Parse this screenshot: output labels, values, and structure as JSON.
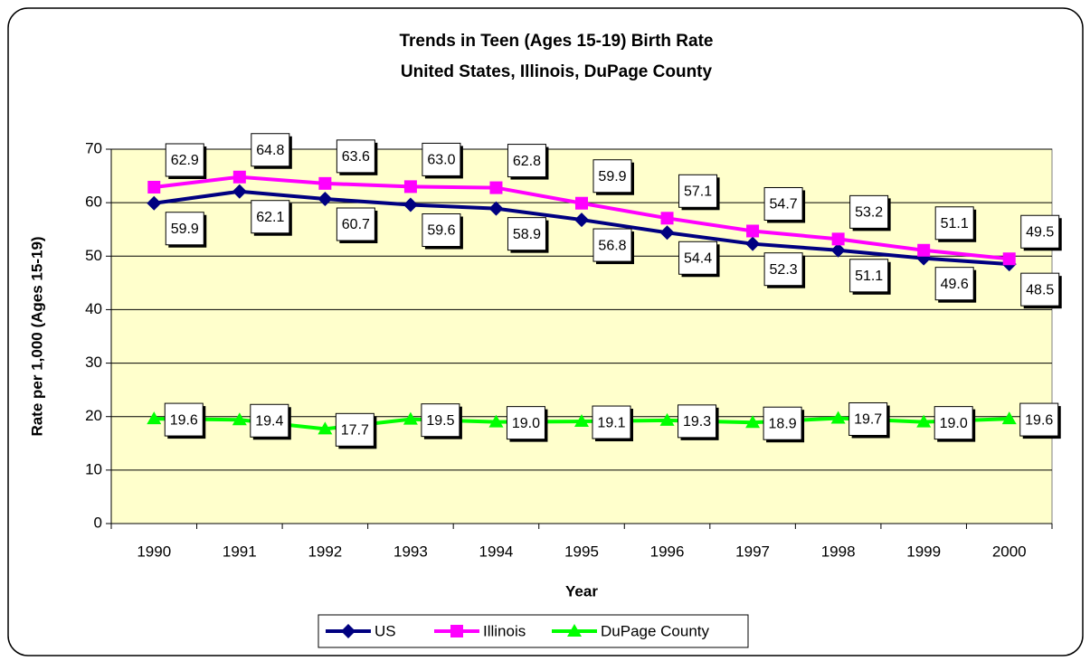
{
  "chart_data": {
    "type": "line",
    "title": "Trends in Teen (Ages 15-19) Birth Rate",
    "subtitle": "United States, Illinois, DuPage County",
    "x_label": "Year",
    "y_label": "Rate per 1,000 (Ages 15-19)",
    "categories": [
      "1990",
      "1991",
      "1992",
      "1993",
      "1994",
      "1995",
      "1996",
      "1997",
      "1998",
      "1999",
      "2000"
    ],
    "series": [
      {
        "name": "US",
        "color": "#000080",
        "marker": "diamond",
        "values": [
          59.9,
          62.1,
          60.7,
          59.6,
          58.9,
          56.8,
          54.4,
          52.3,
          51.1,
          49.6,
          48.5
        ],
        "value_labels": [
          "59.9",
          "62.1",
          "60.7",
          "59.6",
          "58.9",
          "56.8",
          "54.4",
          "52.3",
          "51.1",
          "49.6",
          "48.5"
        ]
      },
      {
        "name": "Illinois",
        "color": "#ff00ff",
        "marker": "square",
        "values": [
          62.9,
          64.8,
          63.6,
          63.0,
          62.8,
          59.9,
          57.1,
          54.7,
          53.2,
          51.1,
          49.5
        ],
        "value_labels": [
          "62.9",
          "64.8",
          "63.6",
          "63.0",
          "62.8",
          "59.9",
          "57.1",
          "54.7",
          "53.2",
          "51.1",
          "49.5"
        ]
      },
      {
        "name": "DuPage County",
        "color": "#00ff00",
        "marker": "triangle",
        "values": [
          19.6,
          19.4,
          17.7,
          19.5,
          19.0,
          19.1,
          19.3,
          18.9,
          19.7,
          19.0,
          19.6
        ],
        "value_labels": [
          "19.6",
          "19.4",
          "17.7",
          "19.5",
          "19.0",
          "19.1",
          "19.3",
          "18.9",
          "19.7",
          "19.0",
          "19.6"
        ]
      }
    ],
    "ylim": [
      0,
      70
    ],
    "yticks": [
      0,
      10,
      20,
      30,
      40,
      50,
      60,
      70
    ],
    "grid": true,
    "plot_background": "#ffffcc",
    "legend": "bottom"
  }
}
